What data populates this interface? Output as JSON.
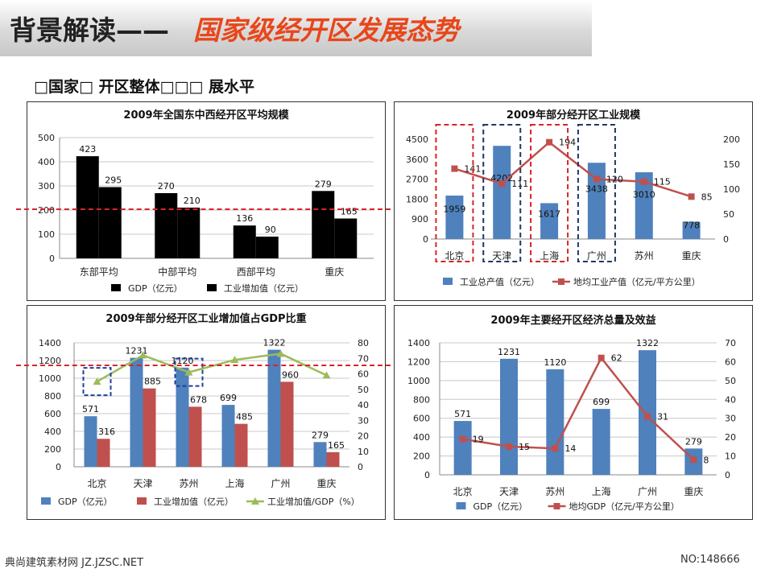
{
  "header": {
    "title": "背景解读——",
    "accent": "国家级经开区发展态势"
  },
  "subtitle": "□国家□ 开区整体□□□ 展水平",
  "footer": {
    "left": "典尚建筑素材网 JZ.JZSC.NET",
    "right": "NO:148666"
  },
  "colors": {
    "accent": "#e8461b",
    "guide": "#d6252a",
    "blue": "#4f81bd",
    "red": "#c0504d",
    "green": "#9bbb59",
    "black": "#000000",
    "navy": "#1f3864"
  },
  "chart_data": [
    {
      "type": "bar",
      "title": "2009年全国东中西经开区平均规模",
      "categories": [
        "东部平均",
        "中部平均",
        "西部平均",
        "重庆"
      ],
      "series": [
        {
          "name": "GDP（亿元）",
          "values": [
            423,
            270,
            136,
            279
          ]
        },
        {
          "name": "工业增加值（亿元）",
          "values": [
            295,
            210,
            90,
            165
          ]
        }
      ],
      "ylim": [
        0,
        500
      ],
      "yticks": [
        0,
        100,
        200,
        300,
        400,
        500
      ],
      "legend": "bottom",
      "grid": true
    },
    {
      "type": "bar",
      "title": "2009年部分经开区工业规模",
      "categories": [
        "北京",
        "天津",
        "上海",
        "广州",
        "苏州",
        "重庆"
      ],
      "series": [
        {
          "name": "工业总产值（亿元）",
          "type": "bar",
          "axis": "left",
          "values": [
            1959,
            4202,
            1617,
            3438,
            3010,
            778
          ]
        },
        {
          "name": "地均工业产值（亿元/平方公里）",
          "type": "line",
          "axis": "right",
          "values": [
            141,
            111,
            194,
            120,
            115,
            85
          ]
        }
      ],
      "ylim": [
        0,
        4500
      ],
      "yticks": [
        0,
        900,
        1800,
        2700,
        3600,
        4500
      ],
      "y2lim": [
        0,
        200
      ],
      "y2ticks": [
        0,
        50,
        100,
        150,
        200
      ],
      "legend": "bottom",
      "grid": false
    },
    {
      "type": "bar",
      "title": "2009年部分经开区工业增加值占GDP比重",
      "categories": [
        "北京",
        "天津",
        "苏州",
        "上海",
        "广州",
        "重庆"
      ],
      "series": [
        {
          "name": "GDP（亿元）",
          "type": "bar",
          "axis": "left",
          "values": [
            571,
            1231,
            1120,
            699,
            1322,
            279
          ]
        },
        {
          "name": "工业增加值（亿元）",
          "type": "bar",
          "axis": "left",
          "values": [
            316,
            885,
            678,
            485,
            960,
            165
          ]
        },
        {
          "name": "工业增加值/GDP（%）",
          "type": "line",
          "axis": "right",
          "values": [
            55,
            72,
            61,
            69,
            73,
            59
          ]
        }
      ],
      "ylim": [
        0,
        1400
      ],
      "yticks": [
        0,
        200,
        400,
        600,
        800,
        1000,
        1200,
        1400
      ],
      "y2lim": [
        0,
        80
      ],
      "y2ticks": [
        0,
        10,
        20,
        30,
        40,
        50,
        60,
        70,
        80
      ],
      "legend": "bottom",
      "grid": true
    },
    {
      "type": "bar",
      "title": "2009年主要经开区经济总量及效益",
      "categories": [
        "北京",
        "天津",
        "苏州",
        "上海",
        "广州",
        "重庆"
      ],
      "series": [
        {
          "name": "GDP（亿元）",
          "type": "bar",
          "axis": "left",
          "values": [
            571,
            1231,
            1120,
            699,
            1322,
            279
          ]
        },
        {
          "name": "地均GDP（亿元/平方公里）",
          "type": "line",
          "axis": "right",
          "values": [
            19,
            15,
            14,
            62,
            31,
            8
          ]
        }
      ],
      "ylim": [
        0,
        1400
      ],
      "yticks": [
        0,
        200,
        400,
        600,
        800,
        1000,
        1200,
        1400
      ],
      "y2lim": [
        0,
        70
      ],
      "y2ticks": [
        0,
        10,
        20,
        30,
        40,
        50,
        60,
        70
      ],
      "legend": "bottom",
      "grid": true
    }
  ]
}
